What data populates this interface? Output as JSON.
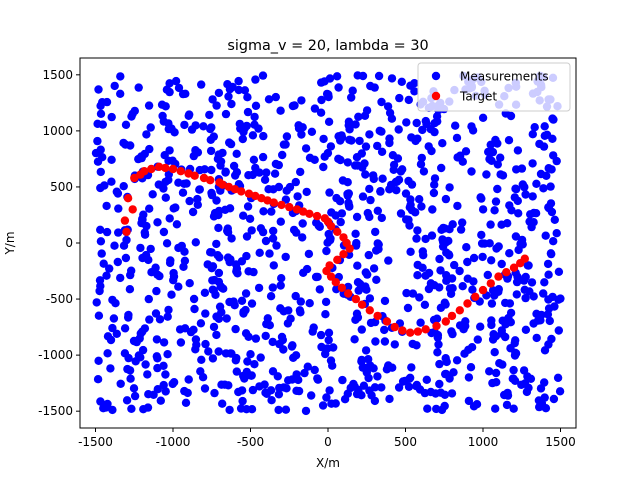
{
  "chart_data": {
    "type": "scatter",
    "title": "sigma_v = 20, lambda = 30",
    "xlabel": "X/m",
    "ylabel": "Y/m",
    "xlim": [
      -1600,
      1600
    ],
    "ylim": [
      -1650,
      1650
    ],
    "xticks": [
      -1500,
      -1000,
      -500,
      0,
      500,
      1000,
      1500
    ],
    "yticks": [
      -1500,
      -1000,
      -500,
      0,
      500,
      1000,
      1500
    ],
    "grid": false,
    "legend_position": "top-right",
    "clutter_count": 1150,
    "clutter_range": [
      -1500,
      1500
    ],
    "series": [
      {
        "name": "Measurements",
        "color": "#0000ff",
        "marker": "circle",
        "distribution": "uniform"
      },
      {
        "name": "Target",
        "color": "#ff0000",
        "marker": "circle",
        "x": [
          -1250,
          -1210,
          -1185,
          -1140,
          -1090,
          -1050,
          -1000,
          -950,
          -900,
          -860,
          -800,
          -760,
          -700,
          -680,
          -640,
          -600,
          -560,
          -510,
          -470,
          -430,
          -390,
          -350,
          -300,
          -250,
          -200,
          -160,
          -120,
          -70,
          -20,
          0,
          20,
          60,
          100,
          120,
          140,
          100,
          60,
          10,
          -10,
          20,
          50,
          90,
          130,
          180,
          220,
          270,
          320,
          380,
          430,
          480,
          530,
          580,
          630,
          700,
          760,
          800,
          850,
          900,
          950,
          1000,
          1050,
          1100,
          1150,
          1200,
          1240,
          1270,
          -1290,
          -1260,
          -1310,
          -1300
        ],
        "y": [
          580,
          610,
          640,
          660,
          680,
          670,
          660,
          640,
          620,
          600,
          580,
          560,
          540,
          520,
          500,
          480,
          460,
          440,
          420,
          400,
          380,
          360,
          340,
          320,
          300,
          280,
          260,
          240,
          220,
          190,
          150,
          100,
          50,
          0,
          -50,
          -100,
          -150,
          -200,
          -250,
          -300,
          -350,
          -400,
          -450,
          -500,
          -550,
          -600,
          -650,
          -700,
          -750,
          -780,
          -800,
          -790,
          -770,
          -740,
          -700,
          -650,
          -600,
          -540,
          -480,
          -420,
          -360,
          -300,
          -260,
          -220,
          -180,
          -140,
          400,
          300,
          200,
          100
        ]
      }
    ]
  }
}
